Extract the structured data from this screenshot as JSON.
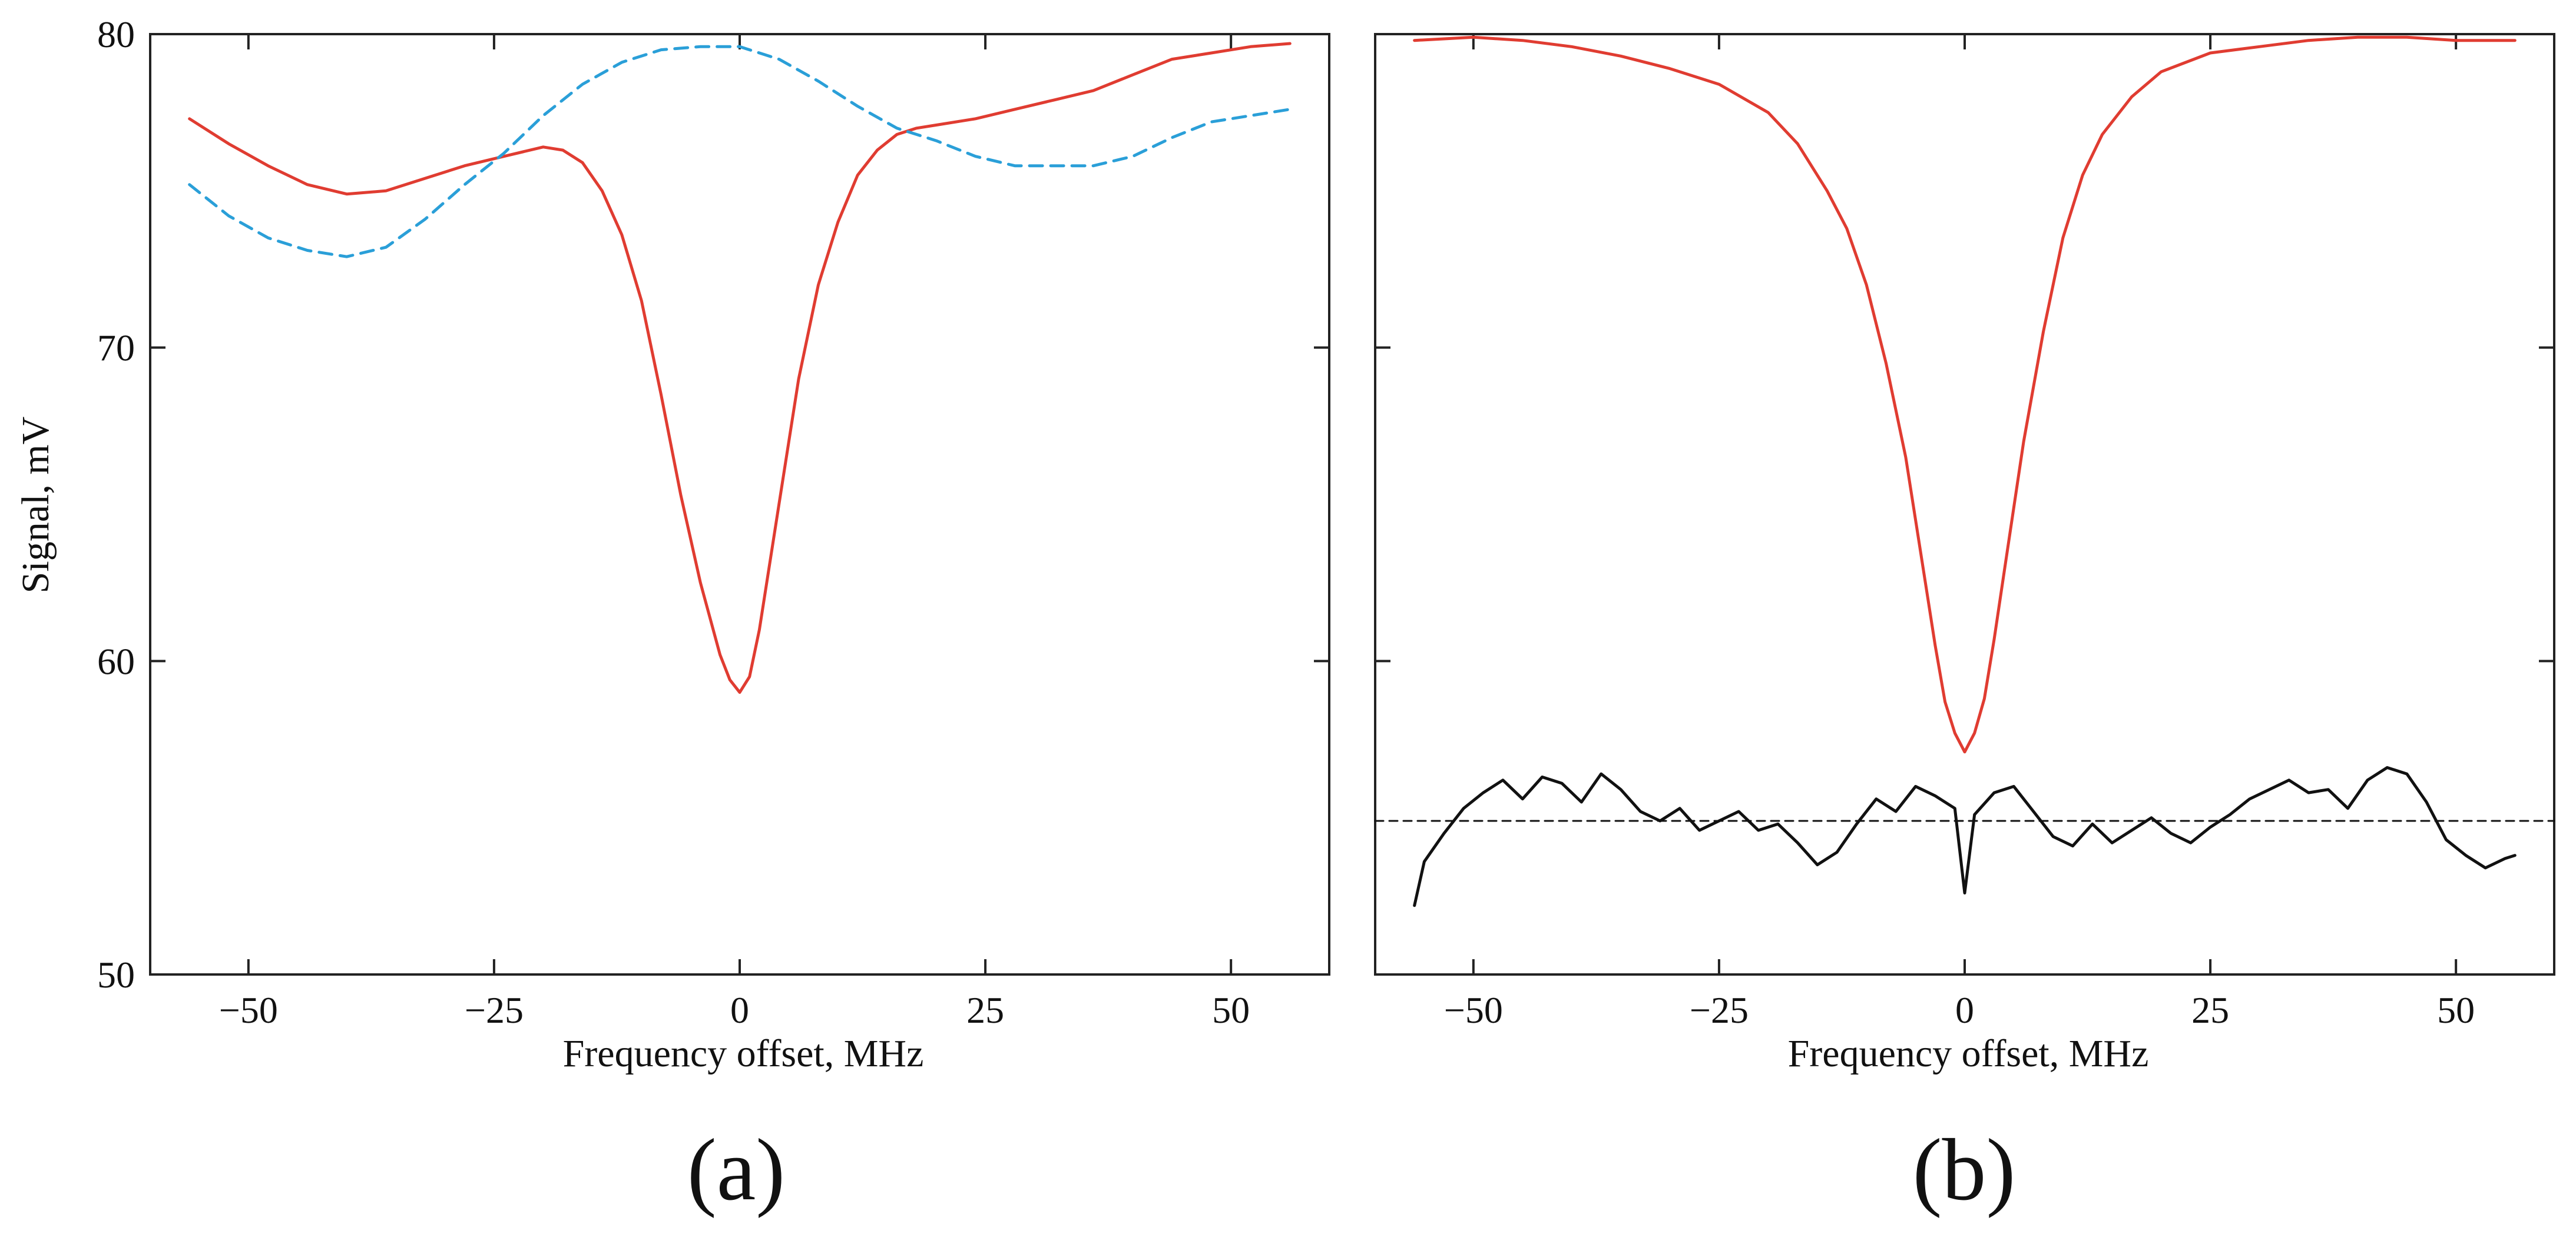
{
  "chart_data": [
    {
      "panel_label": "(a)",
      "type": "line",
      "title": "",
      "xlabel": "Frequency offset, MHz",
      "ylabel": "Signal, mV",
      "xlim": [
        -60,
        60
      ],
      "ylim": [
        50,
        80
      ],
      "xticks": [
        -50,
        -25,
        0,
        25,
        50
      ],
      "yticks": [
        50,
        60,
        70,
        80
      ],
      "xtick_labels": [
        "−50",
        "−25",
        "0",
        "25",
        "50"
      ],
      "ytick_labels": [
        "50",
        "60",
        "70",
        "80"
      ],
      "grid": false,
      "series": [
        {
          "name": "red-solid",
          "color": "#e03c31",
          "style": "solid",
          "x": [
            -56,
            -52,
            -48,
            -44,
            -40,
            -36,
            -32,
            -28,
            -24,
            -20,
            -18,
            -16,
            -14,
            -12,
            -10,
            -8,
            -6,
            -4,
            -2,
            -1,
            0,
            1,
            2,
            4,
            6,
            8,
            10,
            12,
            14,
            16,
            18,
            20,
            24,
            28,
            32,
            36,
            40,
            44,
            48,
            52,
            56
          ],
          "y": [
            77.3,
            76.5,
            75.8,
            75.2,
            74.9,
            75.0,
            75.4,
            75.8,
            76.1,
            76.4,
            76.3,
            75.9,
            75.0,
            73.6,
            71.5,
            68.5,
            65.3,
            62.5,
            60.2,
            59.4,
            59.0,
            59.5,
            61.0,
            65.0,
            69.0,
            72.0,
            74.0,
            75.5,
            76.3,
            76.8,
            77.0,
            77.1,
            77.3,
            77.6,
            77.9,
            78.2,
            78.7,
            79.2,
            79.4,
            79.6,
            79.7
          ]
        },
        {
          "name": "blue-dashed",
          "color": "#2a9fd8",
          "style": "dashed",
          "x": [
            -56,
            -52,
            -48,
            -44,
            -40,
            -36,
            -32,
            -28,
            -24,
            -20,
            -16,
            -12,
            -8,
            -4,
            0,
            4,
            8,
            12,
            16,
            20,
            24,
            28,
            32,
            36,
            40,
            44,
            48,
            52,
            56
          ],
          "y": [
            75.2,
            74.2,
            73.5,
            73.1,
            72.9,
            73.2,
            74.1,
            75.2,
            76.2,
            77.4,
            78.4,
            79.1,
            79.5,
            79.6,
            79.6,
            79.2,
            78.5,
            77.7,
            77.0,
            76.6,
            76.1,
            75.8,
            75.8,
            75.8,
            76.1,
            76.7,
            77.2,
            77.4,
            77.6
          ]
        }
      ]
    },
    {
      "panel_label": "(b)",
      "type": "line",
      "title": "",
      "xlabel": "Frequency offset, MHz",
      "ylabel": "",
      "xlim": [
        -60,
        60
      ],
      "ylim": [
        50,
        80
      ],
      "xticks": [
        -50,
        -25,
        0,
        25,
        50
      ],
      "yticks": [
        50,
        60,
        70,
        80
      ],
      "xtick_labels": [
        "−50",
        "−25",
        "0",
        "25",
        "50"
      ],
      "grid": false,
      "series": [
        {
          "name": "red-solid",
          "color": "#e03c31",
          "style": "solid",
          "x": [
            -56,
            -50,
            -45,
            -40,
            -35,
            -30,
            -25,
            -20,
            -17,
            -14,
            -12,
            -10,
            -8,
            -6,
            -4,
            -3,
            -2,
            -1,
            0,
            1,
            2,
            3,
            4,
            6,
            8,
            10,
            12,
            14,
            17,
            20,
            25,
            30,
            35,
            40,
            45,
            50,
            56
          ],
          "y": [
            79.8,
            79.9,
            79.8,
            79.6,
            79.3,
            78.9,
            78.4,
            77.5,
            76.5,
            75.0,
            73.8,
            72.0,
            69.5,
            66.5,
            62.5,
            60.5,
            58.7,
            57.7,
            57.1,
            57.7,
            58.8,
            60.7,
            62.8,
            67.0,
            70.5,
            73.5,
            75.5,
            76.8,
            78.0,
            78.8,
            79.4,
            79.6,
            79.8,
            79.9,
            79.9,
            79.8,
            79.8
          ]
        },
        {
          "name": "black-noise",
          "color": "#111111",
          "style": "solid",
          "x": [
            -56,
            -55,
            -53,
            -51,
            -49,
            -47,
            -45,
            -43,
            -41,
            -39,
            -37,
            -35,
            -33,
            -31,
            -29,
            -27,
            -25,
            -23,
            -21,
            -19,
            -17,
            -15,
            -13,
            -11,
            -9,
            -7,
            -5,
            -3,
            -1,
            0,
            1,
            3,
            5,
            7,
            9,
            11,
            13,
            15,
            17,
            19,
            21,
            23,
            25,
            27,
            29,
            31,
            33,
            35,
            37,
            39,
            41,
            43,
            45,
            47,
            49,
            51,
            53,
            55,
            56
          ],
          "y": [
            52.2,
            53.6,
            54.5,
            55.3,
            55.8,
            56.2,
            55.6,
            56.3,
            56.1,
            55.5,
            56.4,
            55.9,
            55.2,
            54.9,
            55.3,
            54.6,
            54.9,
            55.2,
            54.6,
            54.8,
            54.2,
            53.5,
            53.9,
            54.8,
            55.6,
            55.2,
            56.0,
            55.7,
            55.3,
            52.6,
            55.1,
            55.8,
            56.0,
            55.2,
            54.4,
            54.1,
            54.8,
            54.2,
            54.6,
            55.0,
            54.5,
            54.2,
            54.7,
            55.1,
            55.6,
            55.9,
            56.2,
            55.8,
            55.9,
            55.3,
            56.2,
            56.6,
            56.4,
            55.5,
            54.3,
            53.8,
            53.4,
            53.7,
            53.8
          ]
        },
        {
          "name": "black-dashed-reference",
          "color": "#111111",
          "style": "dashed",
          "x": [
            -60,
            60
          ],
          "y": [
            54.9,
            54.9
          ]
        }
      ]
    }
  ]
}
